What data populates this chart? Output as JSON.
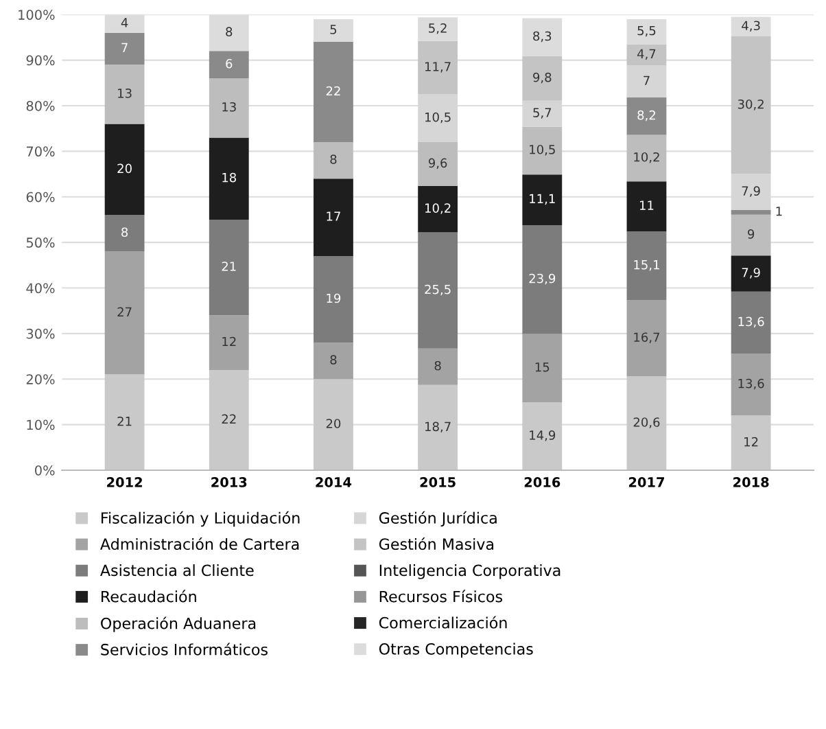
{
  "chart_data": {
    "type": "bar",
    "stacked": true,
    "categories": [
      "2012",
      "2013",
      "2014",
      "2015",
      "2016",
      "2017",
      "2018"
    ],
    "series": [
      {
        "name": "Fiscalización y Liquidación",
        "color": "#c9c9c9",
        "values": [
          21,
          22,
          20,
          18.7,
          14.9,
          20.6,
          12
        ],
        "value_labels": [
          "21",
          "22",
          "20",
          "18,7",
          "14,9",
          "20,6",
          "12"
        ]
      },
      {
        "name": "Administración de Cartera",
        "color": "#a3a3a3",
        "values": [
          27,
          12,
          8,
          8,
          15,
          16.7,
          13.6
        ],
        "value_labels": [
          "27",
          "12",
          "8",
          "8",
          "15",
          "16,7",
          "13,6"
        ]
      },
      {
        "name": "Asistencia al Cliente",
        "color": "#7c7c7c",
        "values": [
          8,
          21,
          19,
          25.5,
          23.9,
          15.1,
          13.6
        ],
        "value_labels": [
          "8",
          "21",
          "19",
          "25,5",
          "23,9",
          "15,1",
          "13,6"
        ]
      },
      {
        "name": "Recaudación",
        "color": "#1e1e1e",
        "values": [
          20,
          18,
          17,
          10.2,
          11.1,
          11,
          7.9
        ],
        "value_labels": [
          "20",
          "18",
          "17",
          "10,2",
          "11,1",
          "11",
          "7,9"
        ]
      },
      {
        "name": "Operación Aduanera",
        "color": "#bdbdbd",
        "values": [
          13,
          13,
          8,
          9.6,
          10.5,
          10.2,
          9
        ],
        "value_labels": [
          "13",
          "13",
          "8",
          "9,6",
          "10,5",
          "10,2",
          "9"
        ]
      },
      {
        "name": "Servicios Informáticos",
        "color": "#8a8a8a",
        "values": [
          7,
          6,
          22,
          null,
          null,
          8.2,
          1
        ],
        "value_labels": [
          "7",
          "6",
          "22",
          null,
          null,
          "8,2",
          "1"
        ]
      },
      {
        "name": "Gestión Jurídica",
        "color": "#d6d6d6",
        "values": [
          null,
          null,
          null,
          10.5,
          5.7,
          7,
          7.9
        ],
        "value_labels": [
          null,
          null,
          null,
          "10,5",
          "5,7",
          "7",
          "7,9"
        ]
      },
      {
        "name": "Gestión Masiva",
        "color": "#c4c4c4",
        "values": [
          null,
          null,
          null,
          11.7,
          9.8,
          4.7,
          30.2
        ],
        "value_labels": [
          null,
          null,
          null,
          "11,7",
          "9,8",
          "4,7",
          "30,2"
        ]
      },
      {
        "name": "Inteligencia Corporativa",
        "color": "#555555",
        "values": [
          null,
          null,
          null,
          null,
          null,
          null,
          null
        ]
      },
      {
        "name": "Recursos Físicos",
        "color": "#969696",
        "values": [
          null,
          null,
          null,
          null,
          null,
          null,
          null
        ]
      },
      {
        "name": "Comercialización",
        "color": "#262626",
        "values": [
          null,
          null,
          null,
          null,
          null,
          null,
          null
        ]
      },
      {
        "name": "Otras Competencias",
        "color": "#dcdcdc",
        "values": [
          4,
          8,
          5,
          5.2,
          8.3,
          5.5,
          4.3
        ],
        "value_labels": [
          "4",
          "8",
          "5",
          "5,2",
          "8,3",
          "5,5",
          "4,3"
        ]
      }
    ],
    "ylim": [
      0,
      100
    ],
    "yticks": [
      {
        "value": 0,
        "label": "0%"
      },
      {
        "value": 10,
        "label": "10%"
      },
      {
        "value": 20,
        "label": "20%"
      },
      {
        "value": 30,
        "label": "30%"
      },
      {
        "value": 40,
        "label": "40%"
      },
      {
        "value": 50,
        "label": "50%"
      },
      {
        "value": 60,
        "label": "60%"
      },
      {
        "value": 70,
        "label": "70%"
      },
      {
        "value": 80,
        "label": "80%"
      },
      {
        "value": 90,
        "label": "90%"
      },
      {
        "value": 100,
        "label": "100%"
      }
    ],
    "grid": "y",
    "legend": "bottom"
  }
}
